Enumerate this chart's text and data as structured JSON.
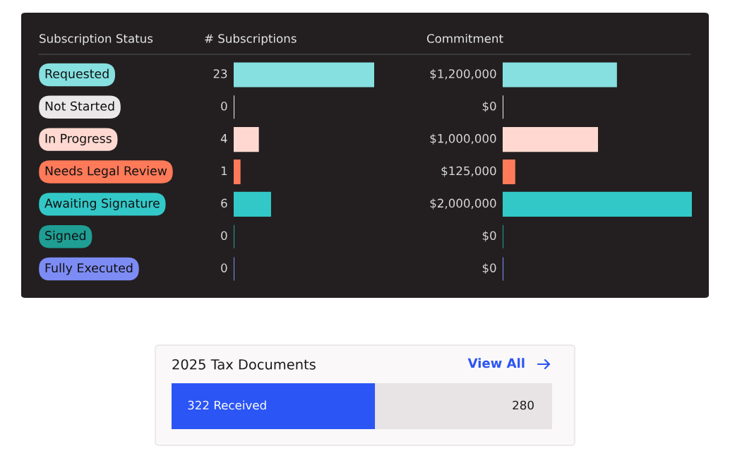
{
  "chart_data": [
    {
      "type": "bar",
      "orientation": "horizontal",
      "title": "# Subscriptions",
      "ylabel": "Subscription Status",
      "categories": [
        "Requested",
        "Not Started",
        "In Progress",
        "Needs Legal Review",
        "Awaiting Signature",
        "Signed",
        "Fully Executed"
      ],
      "values": [
        23,
        0,
        4,
        1,
        6,
        0,
        0
      ],
      "colors": [
        "#86e0e0",
        "#ebe8ea",
        "#ffd9d1",
        "#ff7a59",
        "#33c8c8",
        "#1f9e94",
        "#7d8cf5"
      ],
      "data_labels": true
    },
    {
      "type": "bar",
      "orientation": "horizontal",
      "title": "Commitment",
      "categories": [
        null,
        null,
        null,
        null,
        null,
        null,
        null
      ],
      "values": [
        1200000,
        0,
        1000000,
        125000,
        2000000,
        0,
        0
      ],
      "colors": [
        "#86e0e0",
        "#ebe8ea",
        "#ffd9d1",
        "#ff7a59",
        "#33c8c8",
        "#1f9e94",
        "#7d8cf5"
      ],
      "value_labels": [
        "$1,200,000",
        "$0",
        "$1,000,000",
        "$125,000",
        "$2,000,000",
        "$0",
        "$0"
      ]
    },
    {
      "type": "bar",
      "orientation": "horizontal",
      "stacked": true,
      "title": "2025 Tax Documents",
      "annotations": [
        "View All"
      ],
      "categories": [
        null
      ],
      "series": [
        {
          "color": "#2b55f5",
          "values": [
            322
          ],
          "value_labels": [
            "322 Received"
          ]
        },
        {
          "color": "#e8e4e6",
          "values": [
            280
          ],
          "value_labels": [
            "280"
          ]
        }
      ]
    }
  ]
}
